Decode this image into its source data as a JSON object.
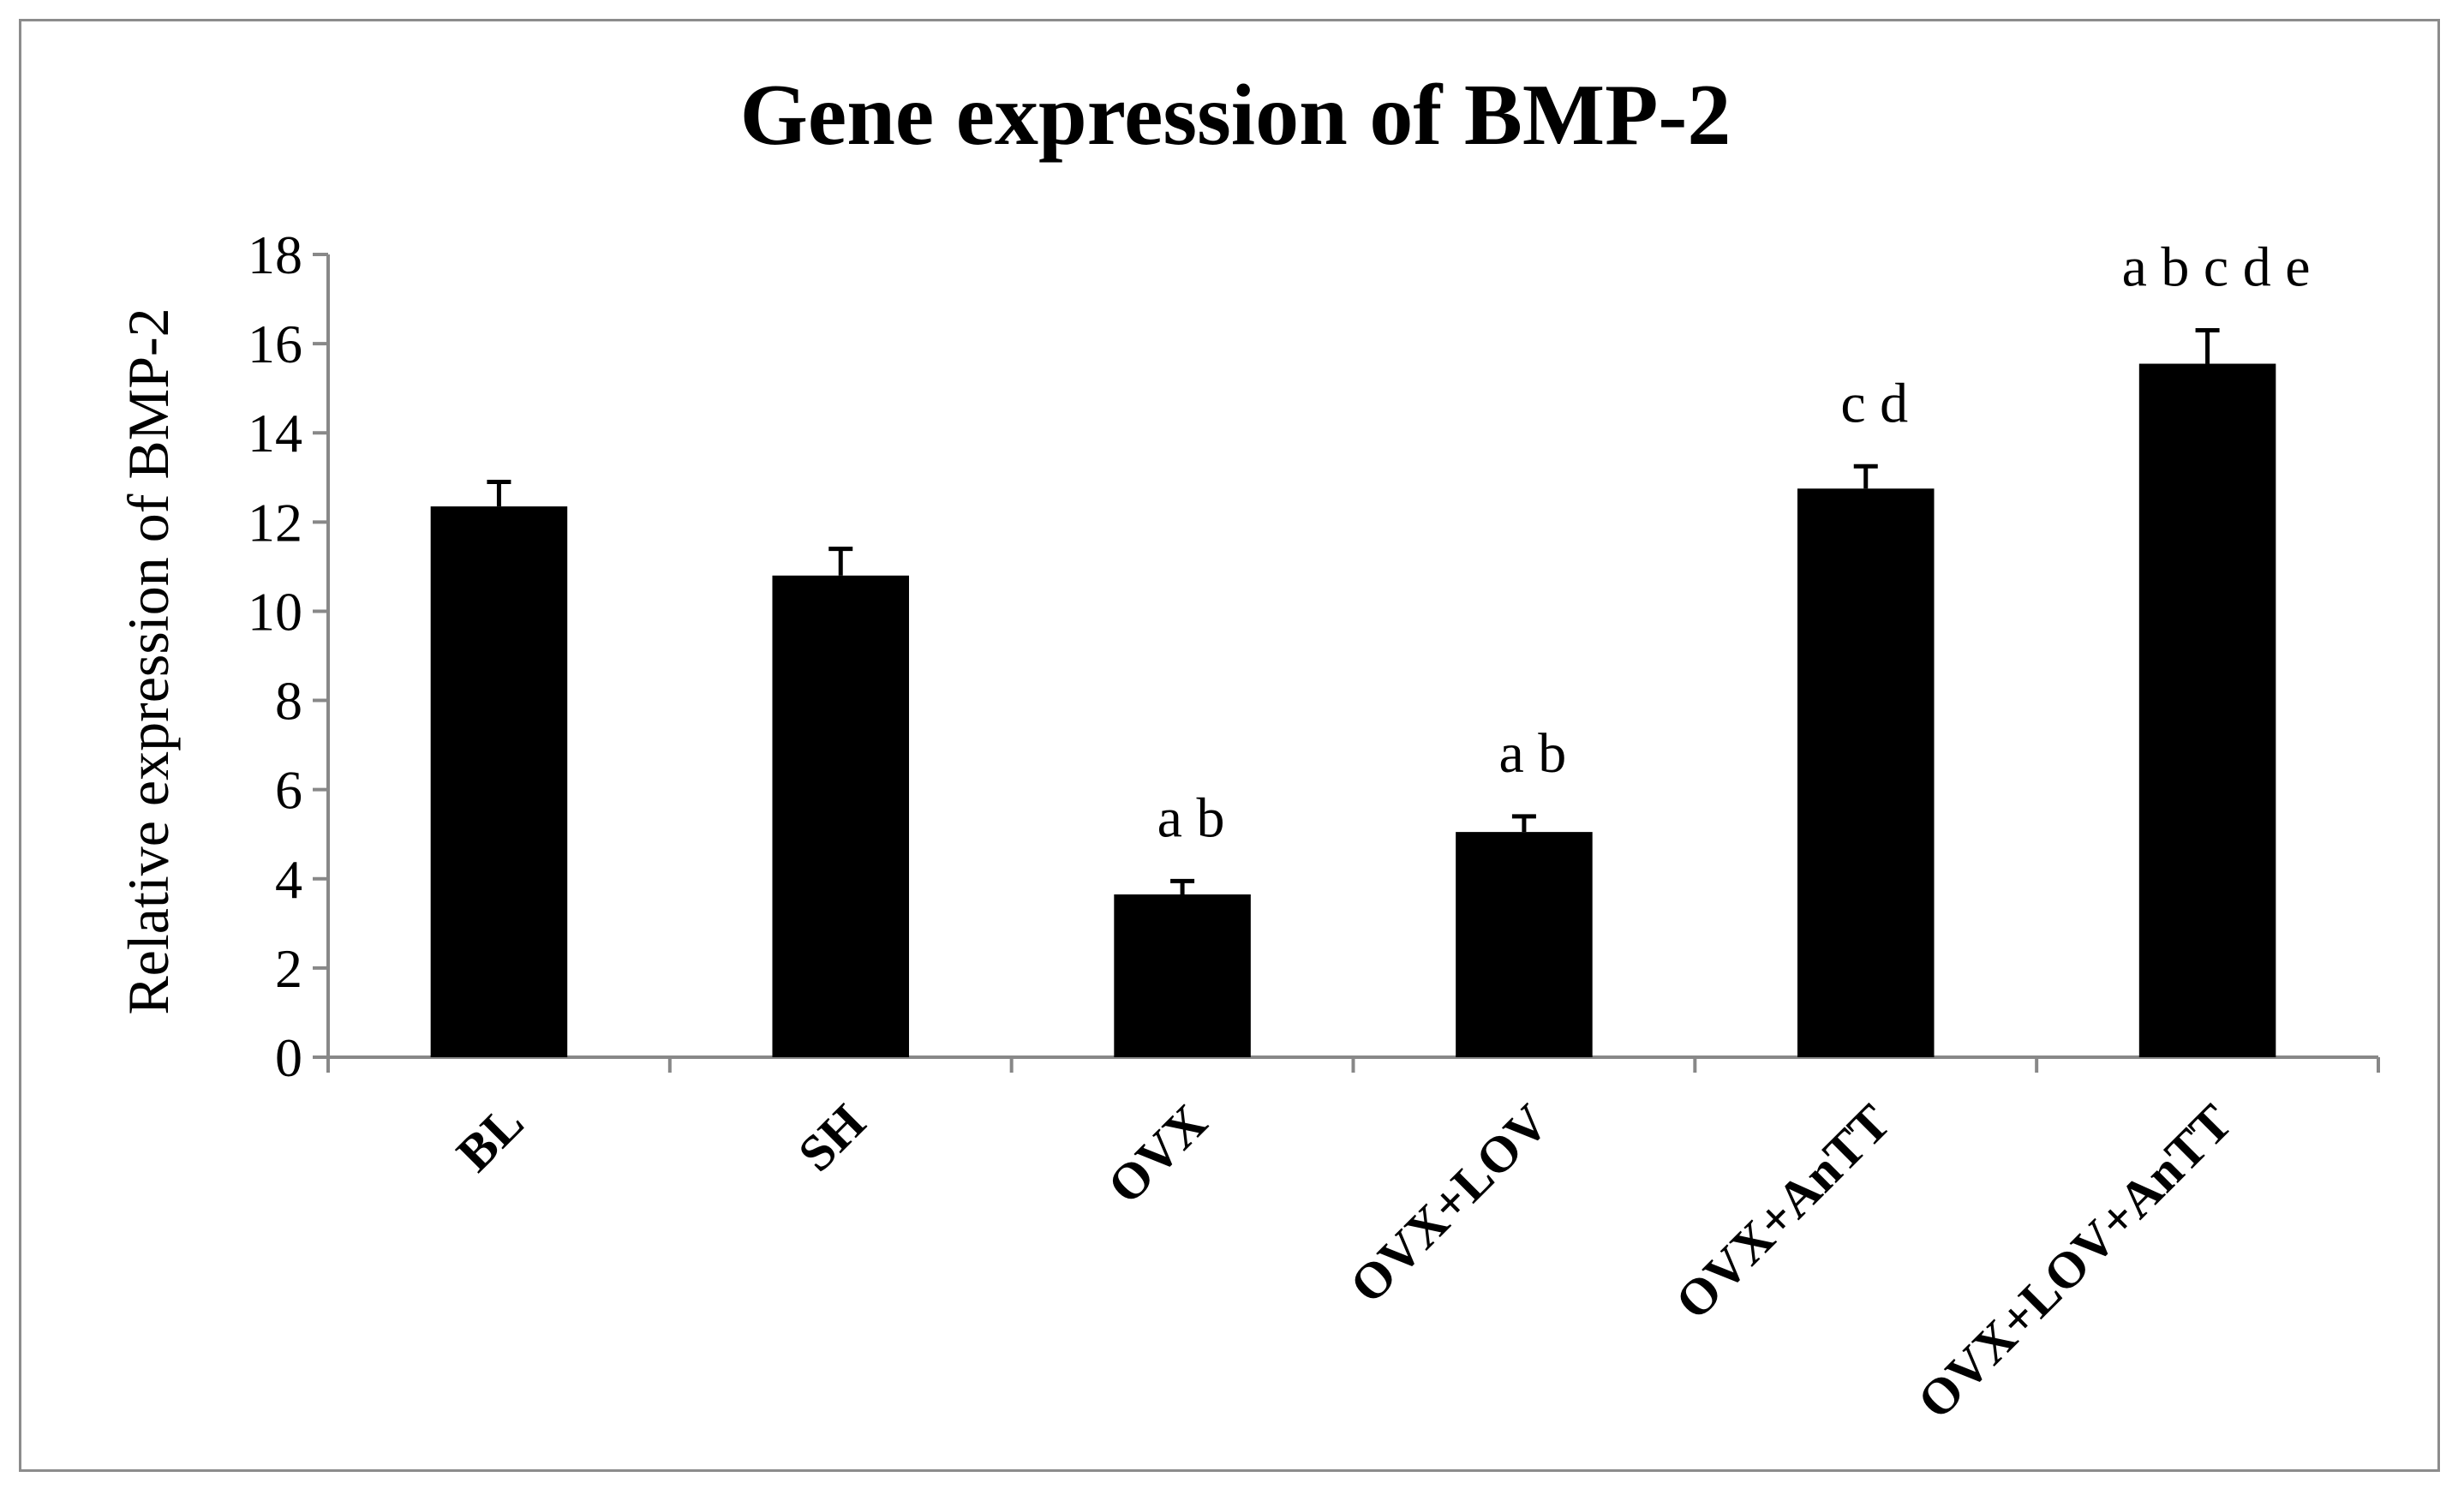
{
  "chart_data": {
    "type": "bar",
    "title": "Gene expression of BMP-2",
    "xlabel": "",
    "ylabel": "Relative expression of BMP-2",
    "categories": [
      "BL",
      "SH",
      "OVX",
      "OVX+LOV",
      "OVX+AnTT",
      "OVX+LOV+AnTT"
    ],
    "values": [
      12.35,
      10.8,
      3.65,
      5.05,
      12.75,
      15.55
    ],
    "errors": [
      0.55,
      0.6,
      0.3,
      0.35,
      0.5,
      0.75
    ],
    "annotations": [
      "",
      "",
      "a b",
      "a b",
      "c d",
      "a b c d e"
    ],
    "ylim": [
      0,
      18
    ],
    "yticks": [
      0,
      2,
      4,
      6,
      8,
      10,
      12,
      14,
      16,
      18
    ],
    "grid": false,
    "legend": "none",
    "bar_color": "#000000"
  }
}
